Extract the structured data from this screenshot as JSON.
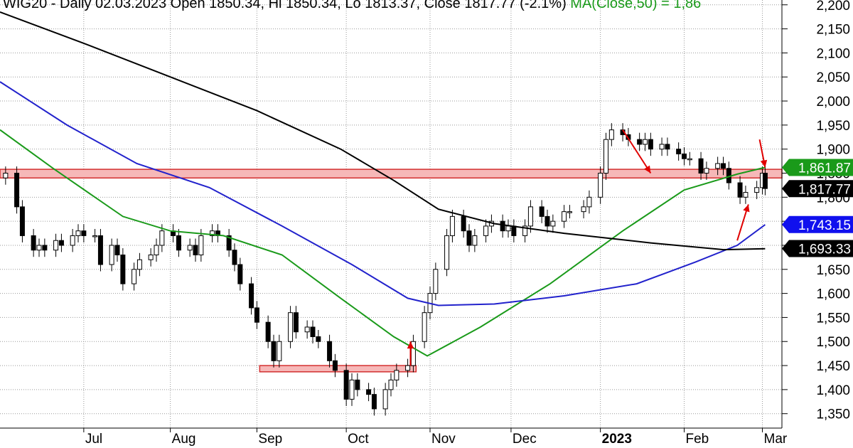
{
  "header": {
    "text": "WIG20 - Daily 02.03.2023 Open 1850.34, Hi 1850.34, Lo 1813.37, Close 1817.77 (-2.1%)",
    "ma_text": "MA(Close,50) = 1,86"
  },
  "chart_data": {
    "type": "candlestick",
    "symbol": "WIG20",
    "interval": "Daily",
    "last_bar": {
      "date": "02.03.2023",
      "open": 1850.34,
      "high": 1850.34,
      "low": 1813.37,
      "close": 1817.77,
      "change": "-2.1%"
    },
    "ylim": [
      1320,
      2210
    ],
    "y_ticks": [
      1350,
      1400,
      1450,
      1500,
      1550,
      1600,
      1650,
      1700,
      1750,
      1800,
      1850,
      1900,
      1950,
      2000,
      2050,
      2100,
      2150,
      2200
    ],
    "y_tick_labels": [
      "1,350",
      "1,400",
      "1,450",
      "1,500",
      "1,550",
      "1,600",
      "1,650",
      "1,700",
      "1,750",
      "1,800",
      "1,850",
      "1,900",
      "1,950",
      "2,000",
      "2,050",
      "2,100",
      "2,150",
      "2,200"
    ],
    "x_ticks": [
      {
        "label": "Jul",
        "date": "2022-07-01",
        "bold": false
      },
      {
        "label": "Aug",
        "date": "2022-08-01",
        "bold": false
      },
      {
        "label": "Sep",
        "date": "2022-09-01",
        "bold": false
      },
      {
        "label": "Oct",
        "date": "2022-10-03",
        "bold": false
      },
      {
        "label": "Nov",
        "date": "2022-11-02",
        "bold": false
      },
      {
        "label": "Dec",
        "date": "2022-12-01",
        "bold": false
      },
      {
        "label": "2023",
        "date": "2023-01-02",
        "bold": true
      },
      {
        "label": "Feb",
        "date": "2023-02-01",
        "bold": false
      },
      {
        "label": "Mar",
        "date": "2023-03-01",
        "bold": false
      }
    ],
    "date_range": [
      "2022-06-01",
      "2023-03-08"
    ],
    "grid": true,
    "close_series": [
      [
        "2022-06-01",
        1840
      ],
      [
        "2022-06-03",
        1850
      ],
      [
        "2022-06-07",
        1780
      ],
      [
        "2022-06-09",
        1720
      ],
      [
        "2022-06-13",
        1690
      ],
      [
        "2022-06-15",
        1700
      ],
      [
        "2022-06-17",
        1690
      ],
      [
        "2022-06-21",
        1710
      ],
      [
        "2022-06-23",
        1700
      ],
      [
        "2022-06-27",
        1720
      ],
      [
        "2022-06-29",
        1730
      ],
      [
        "2022-07-01",
        1720
      ],
      [
        "2022-07-05",
        1720
      ],
      [
        "2022-07-07",
        1660
      ],
      [
        "2022-07-11",
        1700
      ],
      [
        "2022-07-13",
        1680
      ],
      [
        "2022-07-15",
        1620
      ],
      [
        "2022-07-19",
        1650
      ],
      [
        "2022-07-21",
        1670
      ],
      [
        "2022-07-25",
        1680
      ],
      [
        "2022-07-27",
        1700
      ],
      [
        "2022-07-29",
        1730
      ],
      [
        "2022-08-02",
        1720
      ],
      [
        "2022-08-04",
        1690
      ],
      [
        "2022-08-08",
        1700
      ],
      [
        "2022-08-10",
        1680
      ],
      [
        "2022-08-12",
        1720
      ],
      [
        "2022-08-16",
        1730
      ],
      [
        "2022-08-18",
        1720
      ],
      [
        "2022-08-22",
        1690
      ],
      [
        "2022-08-24",
        1660
      ],
      [
        "2022-08-26",
        1620
      ],
      [
        "2022-08-30",
        1570
      ],
      [
        "2022-09-01",
        1540
      ],
      [
        "2022-09-05",
        1500
      ],
      [
        "2022-09-07",
        1460
      ],
      [
        "2022-09-09",
        1500
      ],
      [
        "2022-09-13",
        1560
      ],
      [
        "2022-09-15",
        1520
      ],
      [
        "2022-09-19",
        1530
      ],
      [
        "2022-09-21",
        1510
      ],
      [
        "2022-09-23",
        1500
      ],
      [
        "2022-09-27",
        1460
      ],
      [
        "2022-09-29",
        1440
      ],
      [
        "2022-10-03",
        1380
      ],
      [
        "2022-10-05",
        1420
      ],
      [
        "2022-10-07",
        1400
      ],
      [
        "2022-10-11",
        1390
      ],
      [
        "2022-10-13",
        1360
      ],
      [
        "2022-10-17",
        1400
      ],
      [
        "2022-10-19",
        1420
      ],
      [
        "2022-10-21",
        1440
      ],
      [
        "2022-10-25",
        1450
      ],
      [
        "2022-10-27",
        1500
      ],
      [
        "2022-10-31",
        1560
      ],
      [
        "2022-11-02",
        1600
      ],
      [
        "2022-11-04",
        1650
      ],
      [
        "2022-11-08",
        1720
      ],
      [
        "2022-11-10",
        1760
      ],
      [
        "2022-11-14",
        1730
      ],
      [
        "2022-11-16",
        1700
      ],
      [
        "2022-11-18",
        1720
      ],
      [
        "2022-11-22",
        1740
      ],
      [
        "2022-11-24",
        1750
      ],
      [
        "2022-11-28",
        1730
      ],
      [
        "2022-11-30",
        1740
      ],
      [
        "2022-12-02",
        1720
      ],
      [
        "2022-12-06",
        1740
      ],
      [
        "2022-12-08",
        1780
      ],
      [
        "2022-12-12",
        1760
      ],
      [
        "2022-12-14",
        1740
      ],
      [
        "2022-12-16",
        1750
      ],
      [
        "2022-12-20",
        1770
      ],
      [
        "2022-12-22",
        1770
      ],
      [
        "2022-12-27",
        1780
      ],
      [
        "2022-12-29",
        1800
      ],
      [
        "2023-01-02",
        1850
      ],
      [
        "2023-01-04",
        1920
      ],
      [
        "2023-01-06",
        1940
      ],
      [
        "2023-01-10",
        1930
      ],
      [
        "2023-01-12",
        1920
      ],
      [
        "2023-01-16",
        1910
      ],
      [
        "2023-01-18",
        1920
      ],
      [
        "2023-01-20",
        1900
      ],
      [
        "2023-01-24",
        1910
      ],
      [
        "2023-01-26",
        1900
      ],
      [
        "2023-01-30",
        1890
      ],
      [
        "2023-02-01",
        1880
      ],
      [
        "2023-02-03",
        1880
      ],
      [
        "2023-02-07",
        1850
      ],
      [
        "2023-02-09",
        1860
      ],
      [
        "2023-02-13",
        1870
      ],
      [
        "2023-02-15",
        1860
      ],
      [
        "2023-02-17",
        1830
      ],
      [
        "2023-02-21",
        1800
      ],
      [
        "2023-02-23",
        1810
      ],
      [
        "2023-02-27",
        1820
      ],
      [
        "2023-03-01",
        1850
      ],
      [
        "2023-03-02",
        1818
      ]
    ],
    "series": [
      {
        "name": "MA(Close,50)",
        "color": "#1a9a1a",
        "last_value": "1,861.87",
        "points": [
          [
            "2022-06-01",
            1940
          ],
          [
            "2022-06-20",
            1860
          ],
          [
            "2022-07-15",
            1760
          ],
          [
            "2022-08-01",
            1730
          ],
          [
            "2022-08-20",
            1720
          ],
          [
            "2022-09-10",
            1680
          ],
          [
            "2022-10-01",
            1590
          ],
          [
            "2022-10-20",
            1510
          ],
          [
            "2022-11-01",
            1470
          ],
          [
            "2022-11-20",
            1530
          ],
          [
            "2022-12-15",
            1620
          ],
          [
            "2023-01-10",
            1730
          ],
          [
            "2023-02-01",
            1815
          ],
          [
            "2023-02-20",
            1848
          ],
          [
            "2023-03-02",
            1862
          ]
        ]
      },
      {
        "name": "",
        "color": "#2222cc",
        "last_value": "1,743.15",
        "points": [
          [
            "2022-06-01",
            2040
          ],
          [
            "2022-06-25",
            1950
          ],
          [
            "2022-07-20",
            1870
          ],
          [
            "2022-08-15",
            1820
          ],
          [
            "2022-09-10",
            1740
          ],
          [
            "2022-10-05",
            1660
          ],
          [
            "2022-10-25",
            1590
          ],
          [
            "2022-11-05",
            1575
          ],
          [
            "2022-11-25",
            1578
          ],
          [
            "2022-12-20",
            1595
          ],
          [
            "2023-01-15",
            1620
          ],
          [
            "2023-02-05",
            1665
          ],
          [
            "2023-02-20",
            1700
          ],
          [
            "2023-03-02",
            1743
          ]
        ]
      },
      {
        "name": "",
        "color": "#000000",
        "last_value": "1,693.33",
        "points": [
          [
            "2022-06-01",
            2185
          ],
          [
            "2022-07-01",
            2120
          ],
          [
            "2022-08-01",
            2050
          ],
          [
            "2022-09-01",
            1980
          ],
          [
            "2022-10-01",
            1900
          ],
          [
            "2022-10-20",
            1835
          ],
          [
            "2022-11-05",
            1775
          ],
          [
            "2022-11-25",
            1745
          ],
          [
            "2022-12-20",
            1725
          ],
          [
            "2023-01-20",
            1705
          ],
          [
            "2023-02-15",
            1691
          ],
          [
            "2023-03-02",
            1693
          ]
        ]
      }
    ],
    "current_price_label": "1,817.77",
    "resistance_zone": {
      "from": "2022-06-01",
      "to": "2023-03-08",
      "low": 1840,
      "high": 1858
    },
    "support_zone": {
      "from": "2022-09-02",
      "to": "2022-10-28",
      "low": 1437,
      "high": 1450
    },
    "annotations": [
      {
        "type": "arrow",
        "color": "#e00000",
        "from": [
          "2022-10-26",
          1450
        ],
        "to": [
          "2022-10-26",
          1500
        ]
      },
      {
        "type": "arrow",
        "color": "#e00000",
        "from": [
          "2023-01-10",
          1940
        ],
        "to": [
          "2023-01-20",
          1850
        ]
      },
      {
        "type": "arrow",
        "color": "#e00000",
        "from": [
          "2023-02-20",
          1710
        ],
        "to": [
          "2023-02-24",
          1785
        ]
      },
      {
        "type": "arrow",
        "color": "#e00000",
        "from": [
          "2023-02-28",
          1920
        ],
        "to": [
          "2023-03-02",
          1862
        ]
      }
    ],
    "colors": {
      "up": "#ffffff",
      "down": "#000000",
      "zone_fill": "#f6b8b8",
      "zone_stroke": "#d32f2f",
      "grid": "#999999",
      "arrow": "#e00000"
    }
  }
}
